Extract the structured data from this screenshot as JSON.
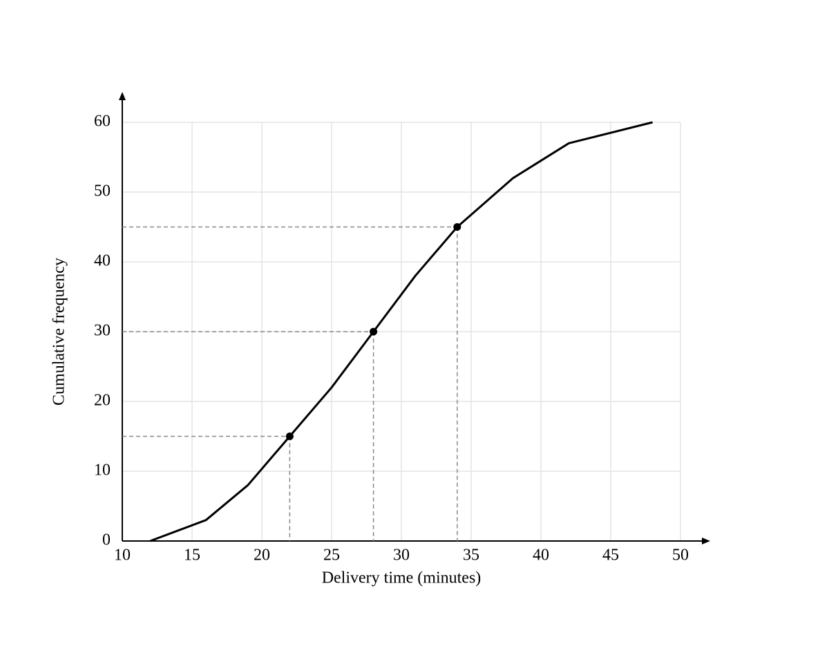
{
  "chart_data": {
    "type": "line",
    "xlabel": "Delivery time (minutes)",
    "ylabel": "Cumulative frequency",
    "x": [
      12,
      16,
      19,
      22,
      25,
      28,
      31,
      34,
      38,
      42,
      48
    ],
    "series": [
      {
        "color": "#000000",
        "values": [
          0,
          3,
          8,
          15,
          22,
          30,
          38,
          45,
          52,
          57,
          60
        ]
      }
    ],
    "markers": {
      "x": [
        22,
        28,
        34
      ],
      "y": [
        15,
        30,
        45
      ],
      "color": "#000000"
    },
    "xlim": [
      10,
      50
    ],
    "xticks": [
      10,
      15,
      20,
      25,
      30,
      35,
      40,
      45,
      50
    ],
    "ylim": [
      0,
      60
    ],
    "yticks": [
      0,
      10,
      20,
      30,
      40,
      50,
      60
    ],
    "grid": true
  }
}
